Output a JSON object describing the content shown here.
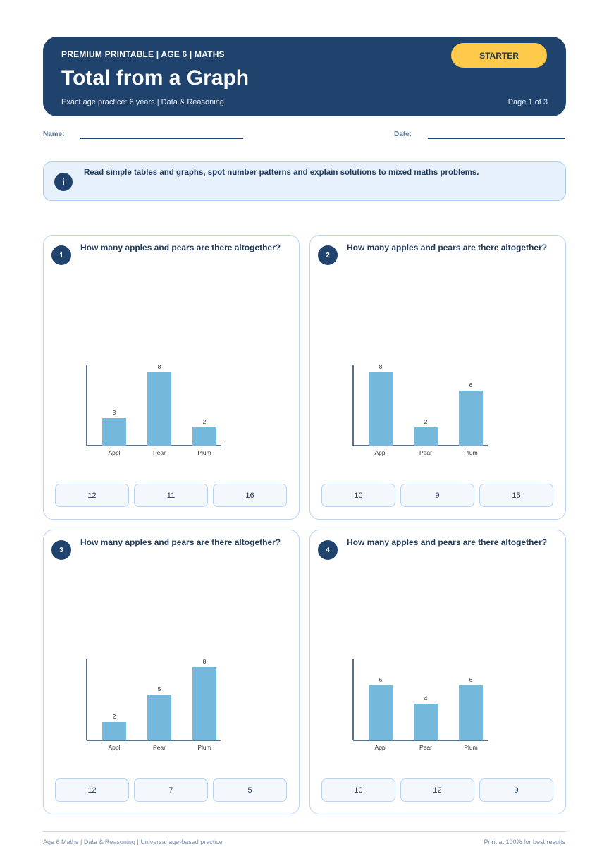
{
  "header": {
    "eyebrow": "PREMIUM PRINTABLE | AGE 6 | MATHS",
    "title": "Total from a Graph",
    "subtitle": "Exact age practice: 6 years | Data & Reasoning",
    "page": "Page 1 of 3",
    "badge": "STARTER"
  },
  "fields": {
    "name_label": "Name:",
    "date_label": "Date:"
  },
  "info": {
    "icon": "i",
    "text": "Read simple tables and graphs, spot number patterns and explain solutions to mixed maths problems."
  },
  "colors": {
    "header_bg": "#1f436c",
    "badge_bg": "#ffc94a",
    "bar": "#74b8dc"
  },
  "questions": [
    {
      "number": "1",
      "text": "How many apples and pears are there altogether?",
      "options": [
        "12",
        "11",
        "16"
      ]
    },
    {
      "number": "2",
      "text": "How many apples and pears are there altogether?",
      "options": [
        "10",
        "9",
        "15"
      ]
    },
    {
      "number": "3",
      "text": "How many apples and pears are there altogether?",
      "options": [
        "12",
        "7",
        "5"
      ]
    },
    {
      "number": "4",
      "text": "How many apples and pears are there altogether?",
      "options": [
        "10",
        "12",
        "9"
      ]
    }
  ],
  "chart_data": [
    {
      "type": "bar",
      "categories": [
        "Appl",
        "Pear",
        "Plum"
      ],
      "values": [
        3,
        8,
        2
      ]
    },
    {
      "type": "bar",
      "categories": [
        "Appl",
        "Pear",
        "Plum"
      ],
      "values": [
        8,
        2,
        6
      ]
    },
    {
      "type": "bar",
      "categories": [
        "Appl",
        "Pear",
        "Plum"
      ],
      "values": [
        2,
        5,
        8
      ]
    },
    {
      "type": "bar",
      "categories": [
        "Appl",
        "Pear",
        "Plum"
      ],
      "values": [
        6,
        4,
        6
      ]
    }
  ],
  "footer": {
    "left": "Age 6 Maths | Data & Reasoning | Universal age-based practice",
    "right": "Print at 100% for best results"
  }
}
